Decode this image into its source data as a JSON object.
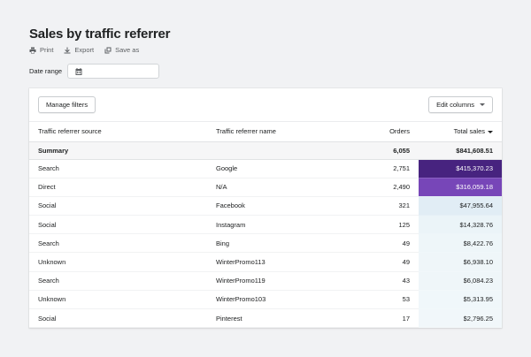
{
  "page": {
    "title": "Sales by traffic referrer",
    "actions": [
      {
        "label": "Print",
        "icon": "printer-icon"
      },
      {
        "label": "Export",
        "icon": "download-icon"
      },
      {
        "label": "Save as",
        "icon": "duplicate-icon"
      }
    ],
    "date_range": {
      "label": "Date range",
      "icon": "calendar-icon",
      "value": ""
    }
  },
  "toolbar": {
    "manage_filters": "Manage filters",
    "edit_columns": "Edit columns"
  },
  "table": {
    "columns": [
      "Traffic referrer source",
      "Traffic referrer name",
      "Orders",
      "Total sales"
    ],
    "sorted_column": "Total sales",
    "summary": {
      "label": "Summary",
      "orders": "6,055",
      "total_sales": "$841,608.51"
    },
    "rows": [
      {
        "source": "Search",
        "name": "Google",
        "orders": "2,751",
        "total_sales": "$415,370.23",
        "bg": "#47237f",
        "fg": "#ffffff"
      },
      {
        "source": "Direct",
        "name": "N/A",
        "orders": "2,490",
        "total_sales": "$316,059.18",
        "bg": "#7746b8",
        "fg": "#ffffff"
      },
      {
        "source": "Social",
        "name": "Facebook",
        "orders": "321",
        "total_sales": "$47,955.64",
        "bg": "#e1edf5",
        "fg": "#202223"
      },
      {
        "source": "Social",
        "name": "Instagram",
        "orders": "125",
        "total_sales": "$14,328.76",
        "bg": "#ebf4f8",
        "fg": "#202223"
      },
      {
        "source": "Search",
        "name": "Bing",
        "orders": "49",
        "total_sales": "$8,422.76",
        "bg": "#eef6f9",
        "fg": "#202223"
      },
      {
        "source": "Unknown",
        "name": "WinterPromo113",
        "orders": "49",
        "total_sales": "$6,938.10",
        "bg": "#eff6f9",
        "fg": "#202223"
      },
      {
        "source": "Search",
        "name": "WinterPromo119",
        "orders": "43",
        "total_sales": "$6,084.23",
        "bg": "#eff6f9",
        "fg": "#202223"
      },
      {
        "source": "Unknown",
        "name": "WinterPromo103",
        "orders": "53",
        "total_sales": "$5,313.95",
        "bg": "#f0f7fa",
        "fg": "#202223"
      },
      {
        "source": "Social",
        "name": "Pinterest",
        "orders": "17",
        "total_sales": "$2,796.25",
        "bg": "#f1f7fa",
        "fg": "#202223"
      }
    ]
  }
}
